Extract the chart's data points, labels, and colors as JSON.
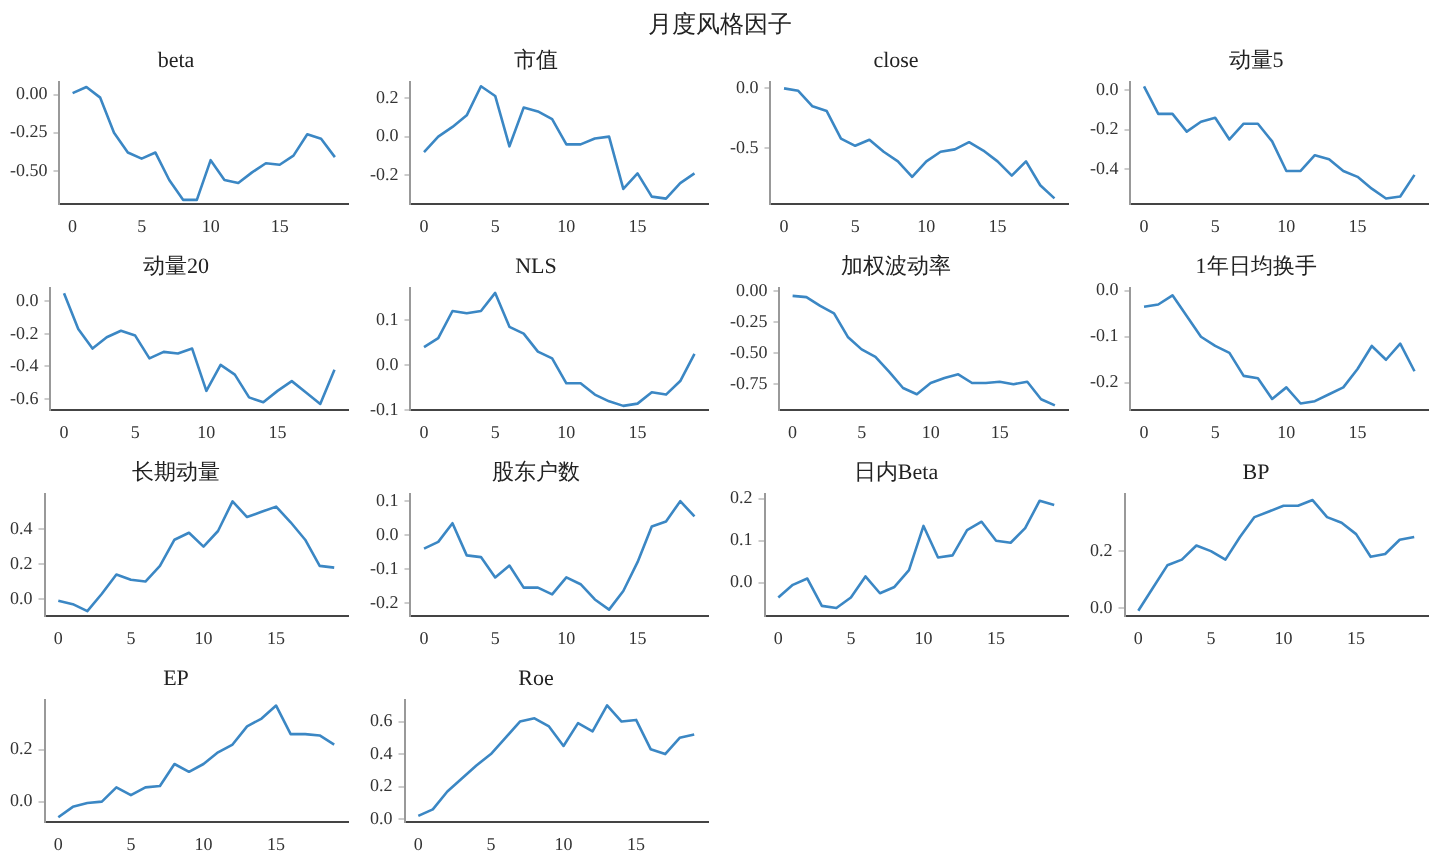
{
  "chart_data": [
    {
      "type": "other",
      "title": "月度风格因子"
    },
    {
      "type": "line",
      "title": "beta",
      "x": [
        0,
        1,
        2,
        3,
        4,
        5,
        6,
        7,
        8,
        9,
        10,
        11,
        12,
        13,
        14,
        15,
        16,
        17,
        18,
        19
      ],
      "xlim": [
        -0.95,
        19.95
      ],
      "xticks": [
        0,
        5,
        10,
        15
      ],
      "ylim": [
        -0.72,
        0.08
      ],
      "yticks": [
        {
          "value": 0,
          "label": "0.00"
        },
        {
          "value": -0.25,
          "label": "-0.25"
        },
        {
          "value": -0.5,
          "label": "-0.50"
        }
      ],
      "series": [
        {
          "color": "#3b87c4",
          "values": [
            0.01,
            0.05,
            -0.02,
            -0.25,
            -0.38,
            -0.42,
            -0.38,
            -0.56,
            -0.69,
            -0.69,
            -0.43,
            -0.56,
            -0.58,
            -0.51,
            -0.45,
            -0.46,
            -0.4,
            -0.26,
            -0.29,
            -0.41
          ]
        }
      ]
    },
    {
      "type": "line",
      "title": "市值",
      "x": [
        0,
        1,
        2,
        3,
        4,
        5,
        6,
        7,
        8,
        9,
        10,
        11,
        12,
        13,
        14,
        15,
        16,
        17,
        18,
        19
      ],
      "xlim": [
        -0.95,
        19.95
      ],
      "xticks": [
        0,
        5,
        10,
        15
      ],
      "ylim": [
        -0.35,
        0.28
      ],
      "yticks": [
        {
          "value": 0.2,
          "label": "0.2"
        },
        {
          "value": 0,
          "label": "0.0"
        },
        {
          "value": -0.2,
          "label": "-0.2"
        }
      ],
      "series": [
        {
          "color": "#3b87c4",
          "values": [
            -0.08,
            0.0,
            0.05,
            0.11,
            0.26,
            0.21,
            -0.05,
            0.15,
            0.13,
            0.09,
            -0.04,
            -0.04,
            -0.01,
            0.0,
            -0.27,
            -0.19,
            -0.31,
            -0.32,
            -0.24,
            -0.19
          ]
        }
      ]
    },
    {
      "type": "line",
      "title": "close",
      "x": [
        0,
        1,
        2,
        3,
        4,
        5,
        6,
        7,
        8,
        9,
        10,
        11,
        12,
        13,
        14,
        15,
        16,
        17,
        18,
        19
      ],
      "xlim": [
        -0.95,
        19.95
      ],
      "xticks": [
        0,
        5,
        10,
        15
      ],
      "ylim": [
        -0.97,
        0.05
      ],
      "yticks": [
        {
          "value": 0,
          "label": "0.0"
        },
        {
          "value": -0.5,
          "label": "-0.5"
        }
      ],
      "series": [
        {
          "color": "#3b87c4",
          "values": [
            0.0,
            -0.02,
            -0.15,
            -0.19,
            -0.42,
            -0.48,
            -0.43,
            -0.53,
            -0.61,
            -0.74,
            -0.61,
            -0.53,
            -0.51,
            -0.45,
            -0.52,
            -0.61,
            -0.73,
            -0.61,
            -0.81,
            -0.92
          ]
        }
      ]
    },
    {
      "type": "line",
      "title": "动量5",
      "x": [
        0,
        1,
        2,
        3,
        4,
        5,
        6,
        7,
        8,
        9,
        10,
        11,
        12,
        13,
        14,
        15,
        16,
        17,
        18,
        19
      ],
      "xlim": [
        -0.95,
        19.95
      ],
      "xticks": [
        0,
        5,
        10,
        15
      ],
      "ylim": [
        -0.58,
        0.04
      ],
      "yticks": [
        {
          "value": 0,
          "label": "0.0"
        },
        {
          "value": -0.2,
          "label": "-0.2"
        },
        {
          "value": -0.4,
          "label": "-0.4"
        }
      ],
      "series": [
        {
          "color": "#3b87c4",
          "values": [
            0.02,
            -0.12,
            -0.12,
            -0.21,
            -0.16,
            -0.14,
            -0.25,
            -0.17,
            -0.17,
            -0.26,
            -0.41,
            -0.41,
            -0.33,
            -0.35,
            -0.41,
            -0.44,
            -0.5,
            -0.55,
            -0.54,
            -0.43
          ]
        }
      ]
    },
    {
      "type": "line",
      "title": "动量20",
      "x": [
        0,
        1,
        2,
        3,
        4,
        5,
        6,
        7,
        8,
        9,
        10,
        11,
        12,
        13,
        14,
        15,
        16,
        17,
        18,
        19
      ],
      "xlim": [
        -0.95,
        19.95
      ],
      "xticks": [
        0,
        5,
        10,
        15
      ],
      "ylim": [
        -0.67,
        0.08
      ],
      "yticks": [
        {
          "value": 0,
          "label": "0.0"
        },
        {
          "value": -0.2,
          "label": "-0.2"
        },
        {
          "value": -0.4,
          "label": "-0.4"
        },
        {
          "value": -0.6,
          "label": "-0.6"
        }
      ],
      "series": [
        {
          "color": "#3b87c4",
          "values": [
            0.05,
            -0.17,
            -0.29,
            -0.22,
            -0.18,
            -0.21,
            -0.35,
            -0.31,
            -0.32,
            -0.29,
            -0.55,
            -0.39,
            -0.45,
            -0.59,
            -0.62,
            -0.55,
            -0.49,
            -0.56,
            -0.63,
            -0.42
          ]
        }
      ]
    },
    {
      "type": "line",
      "title": "NLS",
      "x": [
        0,
        1,
        2,
        3,
        4,
        5,
        6,
        7,
        8,
        9,
        10,
        11,
        12,
        13,
        14,
        15,
        16,
        17,
        18,
        19
      ],
      "xlim": [
        -0.95,
        19.95
      ],
      "xticks": [
        0,
        5,
        10,
        15
      ],
      "ylim": [
        -0.1,
        0.17
      ],
      "yticks": [
        {
          "value": 0.1,
          "label": "0.1"
        },
        {
          "value": 0,
          "label": "0.0"
        },
        {
          "value": -0.1,
          "label": "-0.1"
        }
      ],
      "series": [
        {
          "color": "#3b87c4",
          "values": [
            0.04,
            0.06,
            0.12,
            0.115,
            0.12,
            0.16,
            0.085,
            0.07,
            0.03,
            0.015,
            -0.04,
            -0.04,
            -0.065,
            -0.08,
            -0.09,
            -0.085,
            -0.06,
            -0.065,
            -0.035,
            0.025
          ]
        }
      ]
    },
    {
      "type": "line",
      "title": "加权波动率",
      "x": [
        0,
        1,
        2,
        3,
        4,
        5,
        6,
        7,
        8,
        9,
        10,
        11,
        12,
        13,
        14,
        15,
        16,
        17,
        18,
        19
      ],
      "xlim": [
        -0.95,
        19.95
      ],
      "xticks": [
        0,
        5,
        10,
        15
      ],
      "ylim": [
        -0.96,
        0.02
      ],
      "yticks": [
        {
          "value": 0,
          "label": "0.00"
        },
        {
          "value": -0.25,
          "label": "-0.25"
        },
        {
          "value": -0.5,
          "label": "-0.50"
        },
        {
          "value": -0.75,
          "label": "-0.75"
        }
      ],
      "series": [
        {
          "color": "#3b87c4",
          "values": [
            -0.04,
            -0.05,
            -0.12,
            -0.18,
            -0.37,
            -0.47,
            -0.53,
            -0.65,
            -0.78,
            -0.83,
            -0.74,
            -0.7,
            -0.67,
            -0.74,
            -0.74,
            -0.73,
            -0.75,
            -0.73,
            -0.87,
            -0.92
          ]
        }
      ]
    },
    {
      "type": "line",
      "title": "1年日均换手",
      "x": [
        0,
        1,
        2,
        3,
        4,
        5,
        6,
        7,
        8,
        9,
        10,
        11,
        12,
        13,
        14,
        15,
        16,
        17,
        18,
        19
      ],
      "xlim": [
        -0.95,
        19.95
      ],
      "xticks": [
        0,
        5,
        10,
        15
      ],
      "ylim": [
        -0.26,
        0.005
      ],
      "yticks": [
        {
          "value": 0,
          "label": "0.0"
        },
        {
          "value": -0.1,
          "label": "-0.1"
        },
        {
          "value": -0.2,
          "label": "-0.2"
        }
      ],
      "series": [
        {
          "color": "#3b87c4",
          "values": [
            -0.035,
            -0.03,
            -0.01,
            -0.055,
            -0.1,
            -0.12,
            -0.135,
            -0.185,
            -0.19,
            -0.235,
            -0.21,
            -0.245,
            -0.24,
            -0.225,
            -0.21,
            -0.17,
            -0.12,
            -0.15,
            -0.115,
            -0.175
          ]
        }
      ]
    },
    {
      "type": "line",
      "title": "长期动量",
      "x": [
        0,
        1,
        2,
        3,
        4,
        5,
        6,
        7,
        8,
        9,
        10,
        11,
        12,
        13,
        14,
        15,
        16,
        17,
        18,
        19
      ],
      "xlim": [
        -0.95,
        19.95
      ],
      "xticks": [
        0,
        5,
        10,
        15
      ],
      "ylim": [
        -0.1,
        0.6
      ],
      "yticks": [
        {
          "value": 0,
          "label": "0.0"
        },
        {
          "value": 0.2,
          "label": "0.2"
        },
        {
          "value": 0.4,
          "label": "0.4"
        }
      ],
      "series": [
        {
          "color": "#3b87c4",
          "values": [
            -0.01,
            -0.03,
            -0.07,
            0.03,
            0.14,
            0.11,
            0.1,
            0.19,
            0.34,
            0.38,
            0.3,
            0.39,
            0.56,
            0.47,
            0.5,
            0.53,
            0.44,
            0.34,
            0.19,
            0.18
          ]
        }
      ]
    },
    {
      "type": "line",
      "title": "股东户数",
      "x": [
        0,
        1,
        2,
        3,
        4,
        5,
        6,
        7,
        8,
        9,
        10,
        11,
        12,
        13,
        14,
        15,
        16,
        17,
        18,
        19
      ],
      "xlim": [
        -0.95,
        19.95
      ],
      "xticks": [
        0,
        5,
        10,
        15
      ],
      "ylim": [
        -0.24,
        0.12
      ],
      "yticks": [
        {
          "value": 0.1,
          "label": "0.1"
        },
        {
          "value": 0,
          "label": "0.0"
        },
        {
          "value": -0.1,
          "label": "-0.1"
        },
        {
          "value": -0.2,
          "label": "-0.2"
        }
      ],
      "series": [
        {
          "color": "#3b87c4",
          "values": [
            -0.04,
            -0.02,
            0.035,
            -0.06,
            -0.065,
            -0.125,
            -0.09,
            -0.155,
            -0.155,
            -0.175,
            -0.125,
            -0.145,
            -0.19,
            -0.22,
            -0.165,
            -0.08,
            0.025,
            0.04,
            0.1,
            0.055
          ]
        }
      ]
    },
    {
      "type": "line",
      "title": "日内Beta",
      "x": [
        0,
        1,
        2,
        3,
        4,
        5,
        6,
        7,
        8,
        9,
        10,
        11,
        12,
        13,
        14,
        15,
        16,
        17,
        18,
        19
      ],
      "xlim": [
        -0.95,
        19.95
      ],
      "xticks": [
        0,
        5,
        10,
        15
      ],
      "ylim": [
        -0.08,
        0.21
      ],
      "yticks": [
        {
          "value": 0.2,
          "label": "0.2"
        },
        {
          "value": 0.1,
          "label": "0.1"
        },
        {
          "value": 0,
          "label": "0.0"
        }
      ],
      "series": [
        {
          "color": "#3b87c4",
          "values": [
            -0.035,
            -0.005,
            0.01,
            -0.055,
            -0.06,
            -0.035,
            0.015,
            -0.025,
            -0.01,
            0.03,
            0.135,
            0.06,
            0.065,
            0.125,
            0.145,
            0.1,
            0.095,
            0.13,
            0.195,
            0.185
          ]
        }
      ]
    },
    {
      "type": "line",
      "title": "BP",
      "x": [
        0,
        1,
        2,
        3,
        4,
        5,
        6,
        7,
        8,
        9,
        10,
        11,
        12,
        13,
        14,
        15,
        16,
        17,
        18,
        19
      ],
      "xlim": [
        -0.95,
        19.95
      ],
      "xticks": [
        0,
        5,
        10,
        15
      ],
      "ylim": [
        -0.03,
        0.4
      ],
      "yticks": [
        {
          "value": 0,
          "label": "0.0"
        },
        {
          "value": 0.2,
          "label": "0.2"
        }
      ],
      "series": [
        {
          "color": "#3b87c4",
          "values": [
            -0.01,
            0.07,
            0.15,
            0.17,
            0.22,
            0.2,
            0.17,
            0.25,
            0.32,
            0.34,
            0.36,
            0.36,
            0.38,
            0.32,
            0.3,
            0.26,
            0.18,
            0.19,
            0.24,
            0.25
          ]
        }
      ]
    },
    {
      "type": "line",
      "title": "EP",
      "x": [
        0,
        1,
        2,
        3,
        4,
        5,
        6,
        7,
        8,
        9,
        10,
        11,
        12,
        13,
        14,
        15,
        16,
        17,
        18,
        19
      ],
      "xlim": [
        -0.95,
        19.95
      ],
      "xticks": [
        0,
        5,
        10,
        15
      ],
      "ylim": [
        -0.08,
        0.39
      ],
      "yticks": [
        {
          "value": 0,
          "label": "0.0"
        },
        {
          "value": 0.2,
          "label": "0.2"
        }
      ],
      "series": [
        {
          "color": "#3b87c4",
          "values": [
            -0.06,
            -0.02,
            -0.005,
            0.0,
            0.055,
            0.025,
            0.055,
            0.06,
            0.145,
            0.115,
            0.145,
            0.19,
            0.22,
            0.29,
            0.32,
            0.37,
            0.26,
            0.26,
            0.255,
            0.22
          ]
        }
      ]
    },
    {
      "type": "line",
      "title": "Roe",
      "x": [
        0,
        1,
        2,
        3,
        4,
        5,
        6,
        7,
        8,
        9,
        10,
        11,
        12,
        13,
        14,
        15,
        16,
        17,
        18,
        19
      ],
      "xlim": [
        -0.95,
        19.95
      ],
      "xticks": [
        0,
        5,
        10,
        15
      ],
      "ylim": [
        -0.02,
        0.73
      ],
      "yticks": [
        {
          "value": 0,
          "label": "0.0"
        },
        {
          "value": 0.2,
          "label": "0.2"
        },
        {
          "value": 0.4,
          "label": "0.4"
        },
        {
          "value": 0.6,
          "label": "0.6"
        }
      ],
      "series": [
        {
          "color": "#3b87c4",
          "values": [
            0.02,
            0.06,
            0.17,
            0.25,
            0.33,
            0.4,
            0.5,
            0.6,
            0.62,
            0.57,
            0.45,
            0.59,
            0.54,
            0.7,
            0.6,
            0.61,
            0.43,
            0.4,
            0.5,
            0.52
          ]
        }
      ]
    }
  ]
}
